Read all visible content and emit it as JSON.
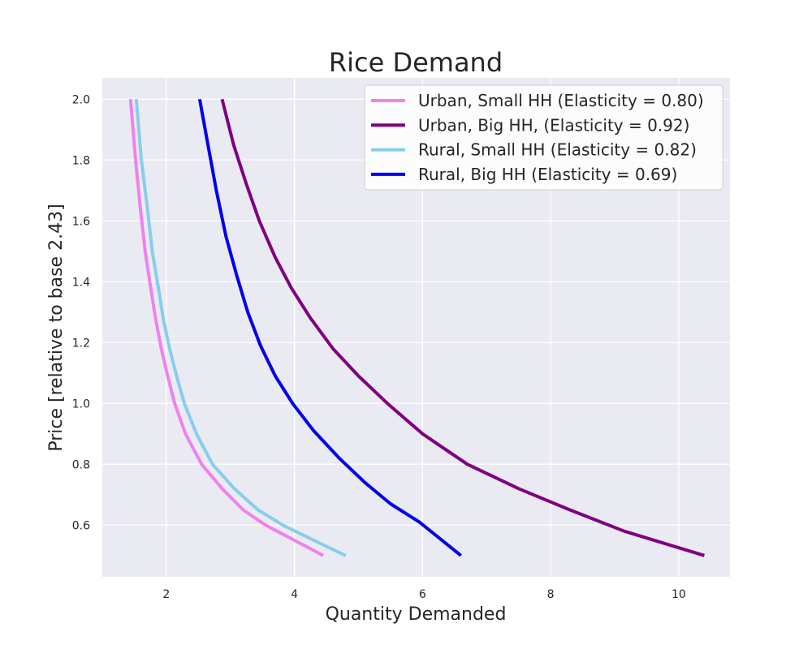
{
  "chart_data": {
    "type": "line",
    "title": "Rice Demand",
    "xlabel": "Quantity Demanded",
    "ylabel": "Price [relative to base 2.43]",
    "xlim": [
      1.0,
      10.8
    ],
    "ylim": [
      0.43,
      2.07
    ],
    "xticks": [
      2,
      4,
      6,
      8,
      10
    ],
    "yticks": [
      0.6,
      0.8,
      1.0,
      1.2,
      1.4,
      1.6,
      1.8,
      2.0
    ],
    "ytick_labels": [
      "0.6",
      "0.8",
      "1.0",
      "1.2",
      "1.4",
      "1.6",
      "1.8",
      "2.0"
    ],
    "grid": true,
    "legend_position": "top-right",
    "background": "#eaeaf2",
    "series": [
      {
        "name": "Urban, Small HH (Elasticity = 0.80)",
        "color": "#ee82ee",
        "points": [
          [
            1.44,
            2.0
          ],
          [
            1.52,
            1.8
          ],
          [
            1.59,
            1.65
          ],
          [
            1.67,
            1.5
          ],
          [
            1.74,
            1.4
          ],
          [
            1.83,
            1.28
          ],
          [
            1.92,
            1.18
          ],
          [
            2.02,
            1.09
          ],
          [
            2.13,
            1.0
          ],
          [
            2.3,
            0.9
          ],
          [
            2.55,
            0.8
          ],
          [
            2.87,
            0.72
          ],
          [
            3.2,
            0.65
          ],
          [
            3.55,
            0.6
          ],
          [
            4.0,
            0.55
          ],
          [
            4.45,
            0.5
          ]
        ]
      },
      {
        "name": "Urban, Big HH, (Elasticity = 0.92)",
        "color": "#800080",
        "points": [
          [
            2.87,
            2.0
          ],
          [
            3.05,
            1.85
          ],
          [
            3.25,
            1.72
          ],
          [
            3.45,
            1.6
          ],
          [
            3.7,
            1.48
          ],
          [
            3.95,
            1.38
          ],
          [
            4.25,
            1.28
          ],
          [
            4.6,
            1.18
          ],
          [
            5.0,
            1.09
          ],
          [
            5.45,
            1.0
          ],
          [
            6.0,
            0.9
          ],
          [
            6.7,
            0.8
          ],
          [
            7.5,
            0.72
          ],
          [
            8.3,
            0.65
          ],
          [
            9.15,
            0.58
          ],
          [
            10.4,
            0.5
          ]
        ]
      },
      {
        "name": "Rural, Small HH (Elasticity = 0.82)",
        "color": "#87ceeb",
        "points": [
          [
            1.53,
            2.0
          ],
          [
            1.61,
            1.8
          ],
          [
            1.7,
            1.65
          ],
          [
            1.78,
            1.5
          ],
          [
            1.86,
            1.4
          ],
          [
            1.95,
            1.28
          ],
          [
            2.05,
            1.18
          ],
          [
            2.16,
            1.09
          ],
          [
            2.28,
            1.0
          ],
          [
            2.47,
            0.9
          ],
          [
            2.72,
            0.8
          ],
          [
            3.06,
            0.72
          ],
          [
            3.43,
            0.65
          ],
          [
            3.82,
            0.6
          ],
          [
            4.3,
            0.55
          ],
          [
            4.8,
            0.5
          ]
        ]
      },
      {
        "name": "Rural, Big HH (Elasticity = 0.69)",
        "color": "#0000ee",
        "points": [
          [
            2.52,
            2.0
          ],
          [
            2.65,
            1.85
          ],
          [
            2.78,
            1.7
          ],
          [
            2.93,
            1.55
          ],
          [
            3.1,
            1.42
          ],
          [
            3.27,
            1.3
          ],
          [
            3.47,
            1.19
          ],
          [
            3.7,
            1.09
          ],
          [
            3.97,
            1.0
          ],
          [
            4.3,
            0.91
          ],
          [
            4.7,
            0.82
          ],
          [
            5.1,
            0.74
          ],
          [
            5.5,
            0.67
          ],
          [
            5.95,
            0.61
          ],
          [
            6.6,
            0.5
          ]
        ]
      }
    ]
  }
}
